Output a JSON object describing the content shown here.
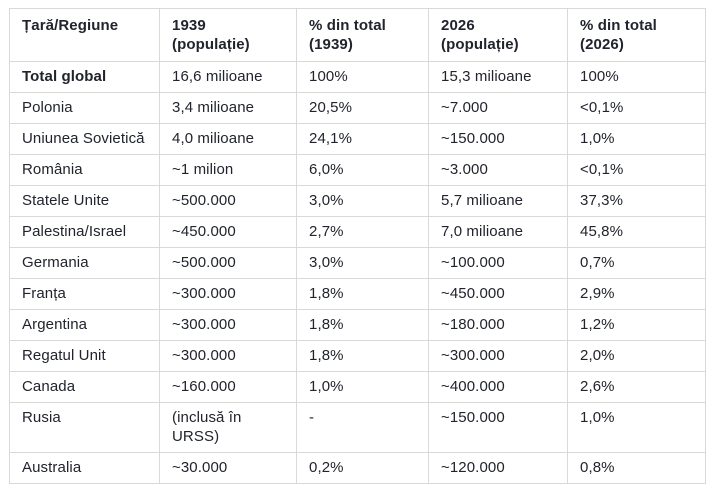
{
  "chart_data": {
    "type": "table",
    "title": "",
    "columns": [
      "Țară/Regiune",
      "1939\n(populație)",
      "% din total\n(1939)",
      "2026\n(populație)",
      "% din total\n(2026)"
    ],
    "rows": [
      {
        "bold": true,
        "cells": [
          "Total global",
          "16,6 milioane",
          "100%",
          "15,3 milioane",
          "100%"
        ]
      },
      {
        "bold": false,
        "cells": [
          "Polonia",
          "3,4 milioane",
          "20,5%",
          "~7.000",
          "<0,1%"
        ]
      },
      {
        "bold": false,
        "cells": [
          "Uniunea Sovietică",
          "4,0 milioane",
          "24,1%",
          "~150.000",
          "1,0%"
        ]
      },
      {
        "bold": false,
        "cells": [
          "România",
          "~1 milion",
          "6,0%",
          "~3.000",
          "<0,1%"
        ]
      },
      {
        "bold": false,
        "cells": [
          "Statele Unite",
          "~500.000",
          "3,0%",
          "5,7 milioane",
          "37,3%"
        ]
      },
      {
        "bold": false,
        "cells": [
          "Palestina/Israel",
          "~450.000",
          "2,7%",
          "7,0 milioane",
          "45,8%"
        ]
      },
      {
        "bold": false,
        "cells": [
          "Germania",
          "~500.000",
          "3,0%",
          "~100.000",
          "0,7%"
        ]
      },
      {
        "bold": false,
        "cells": [
          "Franța",
          "~300.000",
          "1,8%",
          "~450.000",
          "2,9%"
        ]
      },
      {
        "bold": false,
        "cells": [
          "Argentina",
          "~300.000",
          "1,8%",
          "~180.000",
          "1,2%"
        ]
      },
      {
        "bold": false,
        "cells": [
          "Regatul Unit",
          "~300.000",
          "1,8%",
          "~300.000",
          "2,0%"
        ]
      },
      {
        "bold": false,
        "cells": [
          "Canada",
          "~160.000",
          "1,0%",
          "~400.000",
          "2,6%"
        ]
      },
      {
        "bold": false,
        "cells": [
          "Rusia",
          "(inclusă în URSS)",
          "-",
          "~150.000",
          "1,0%"
        ]
      },
      {
        "bold": false,
        "cells": [
          "Australia",
          "~30.000",
          "0,2%",
          "~120.000",
          "0,8%"
        ]
      }
    ]
  },
  "colors": {
    "border": "#d9d9d9",
    "text": "#21242c",
    "background": "#ffffff"
  }
}
